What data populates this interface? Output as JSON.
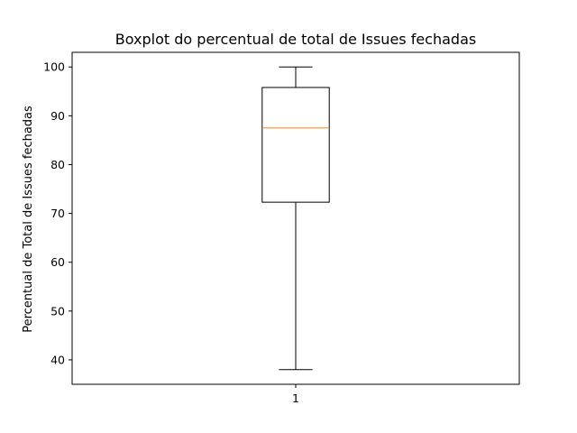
{
  "chart_data": {
    "type": "boxplot",
    "title": "Boxplot do percentual de total de Issues fechadas",
    "xlabel": "",
    "ylabel": "Percentual de Total de Issues fechadas",
    "ylim": [
      35,
      103
    ],
    "yticks": [
      40,
      50,
      60,
      70,
      80,
      90,
      100
    ],
    "categories": [
      "1"
    ],
    "boxes": [
      {
        "category": "1",
        "whisker_low": 38,
        "q1": 72.3,
        "median": 87.5,
        "q3": 95.8,
        "whisker_high": 100
      }
    ],
    "grid": false,
    "colors": {
      "box": "#000000",
      "median": "#ff7f0e"
    }
  }
}
